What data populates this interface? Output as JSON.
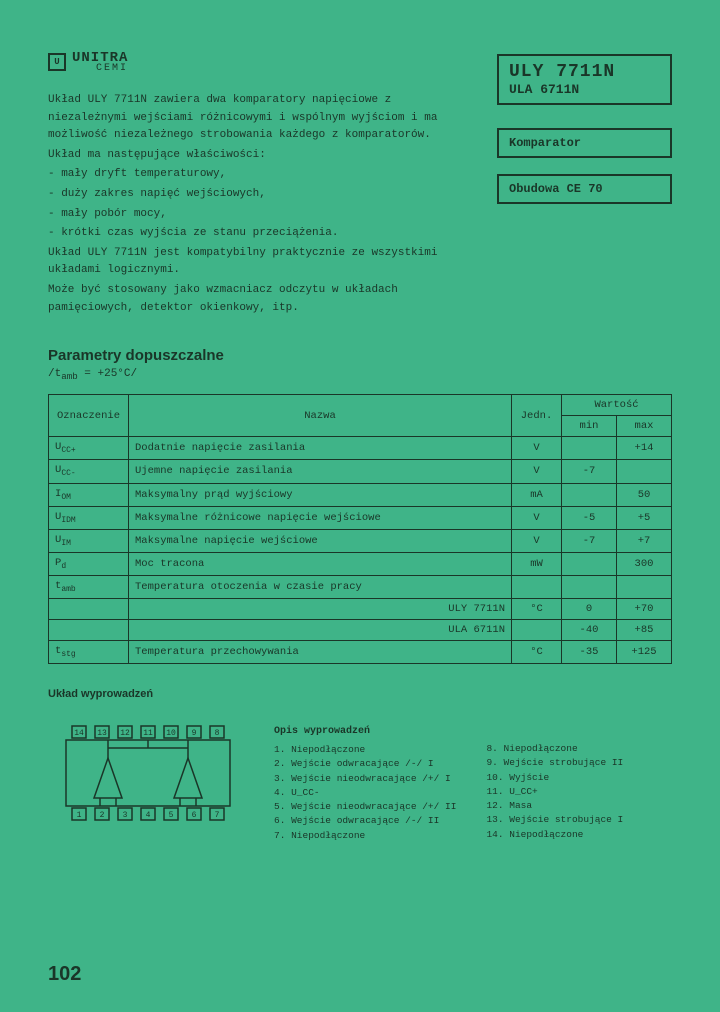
{
  "colors": {
    "bg": "#3fb488",
    "ink": "#1a3628"
  },
  "logo": {
    "brand": "UNITRA",
    "sub": "CEMI"
  },
  "title": {
    "line1": "ULY 7711N",
    "line2": "ULA 6711N"
  },
  "sidebox1": "Komparator",
  "sidebox2": "Obudowa CE 70",
  "desc": [
    "Układ ULY 7711N  zawiera  dwa komparatory napięciowe z niezależnymi wejściami różnicowymi i wspólnym wyjściom i ma możliwość niezależnego strobowania każdego z komparatorów.",
    "Układ ma następujące właściwości:",
    "- mały dryft temperaturowy,",
    "- duży zakres napięć wejściowych,",
    "- mały pobór mocy,",
    "- krótki czas wyjścia ze stanu przeciążenia.",
    "Układ  ULY 7711N  jest  kompatybilny  praktycznie   ze wszystkimi układami logicznymi.",
    "Może  być  stosowany  jako wzmacniacz odczytu w układach pamięciowych, detektor okienkowy, itp."
  ],
  "params_title": "Parametry dopuszczalne",
  "params_cond": "/t_amb = +25°C/",
  "table": {
    "headers": {
      "sym": "Oznaczenie",
      "name": "Nazwa",
      "unit": "Jedn.",
      "val": "Wartość",
      "min": "min",
      "max": "max"
    },
    "rows": [
      {
        "sym": "U_CC+",
        "name": "Dodatnie napięcie zasilania",
        "unit": "V",
        "min": "",
        "max": "+14"
      },
      {
        "sym": "U_CC-",
        "name": "Ujemne napięcie zasilania",
        "unit": "V",
        "min": "-7",
        "max": ""
      },
      {
        "sym": "I_OM",
        "name": "Maksymalny prąd wyjściowy",
        "unit": "mA",
        "min": "",
        "max": "50"
      },
      {
        "sym": "U_IDM",
        "name": "Maksymalne różnicowe napięcie wejściowe",
        "unit": "V",
        "min": "-5",
        "max": "+5"
      },
      {
        "sym": "U_IM",
        "name": "Maksymalne napięcie wejściowe",
        "unit": "V",
        "min": "-7",
        "max": "+7"
      },
      {
        "sym": "P_d",
        "name": "Moc tracona",
        "unit": "mW",
        "min": "",
        "max": "300"
      },
      {
        "sym": "t_amb",
        "name": "Temperatura otoczenia w czasie pracy",
        "unit": "",
        "min": "",
        "max": ""
      },
      {
        "sym": "",
        "name": "ULY 7711N",
        "unit": "°C",
        "min": "0",
        "max": "+70",
        "align": "r"
      },
      {
        "sym": "",
        "name": "ULA 6711N",
        "unit": "",
        "min": "-40",
        "max": "+85",
        "align": "r"
      },
      {
        "sym": "t_stg",
        "name": "Temperatura przechowywania",
        "unit": "°C",
        "min": "-35",
        "max": "+125"
      }
    ]
  },
  "pinout_title": "Układ wyprowadzeń",
  "pinout_desc_title": "Opis wyprowadzeń",
  "pins_left": [
    "1. Niepodłączone",
    "2. Wejście odwracające /-/ I",
    "3. Wejście nieodwracające /+/ I",
    "4. U_CC-",
    "5. Wejście nieodwracające /+/ II",
    "6. Wejście odwracające /-/ II",
    "7. Niepodłączone"
  ],
  "pins_right": [
    "8. Niepodłączone",
    "9. Wejście strobujące II",
    "10. Wyjście",
    "11. U_CC+",
    "12. Masa",
    "13. Wejście strobujące I",
    "14. Niepodłączone"
  ],
  "chip": {
    "pins_top": [
      "14",
      "13",
      "12",
      "11",
      "10",
      "9",
      "8"
    ],
    "pins_bottom": [
      "1",
      "2",
      "3",
      "4",
      "5",
      "6",
      "7"
    ]
  },
  "page": "102"
}
